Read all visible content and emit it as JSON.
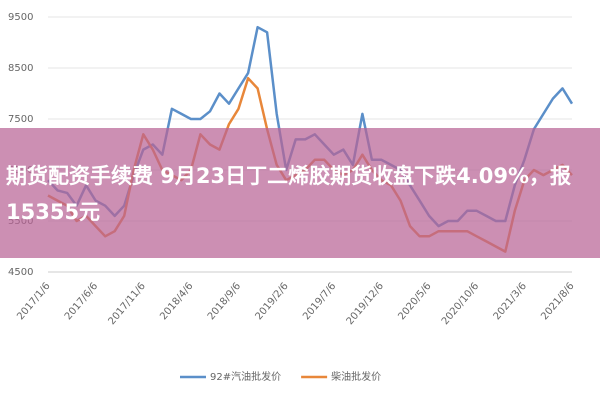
{
  "chart_data": {
    "type": "line",
    "categories": [
      "2017/1/6",
      null,
      null,
      null,
      null,
      "2017/6/6",
      null,
      null,
      null,
      null,
      "2017/11/6",
      null,
      null,
      null,
      null,
      "2018/4/6",
      null,
      null,
      null,
      null,
      "2018/9/6",
      null,
      null,
      null,
      null,
      "2019/2/6",
      null,
      null,
      null,
      null,
      "2019/7/6",
      null,
      null,
      null,
      null,
      "2019/12/6",
      null,
      null,
      null,
      null,
      "2020/5/6",
      null,
      null,
      null,
      null,
      "2020/10/6",
      null,
      null,
      null,
      null,
      "2021/3/6",
      null,
      null,
      null,
      null,
      "2021/8/6"
    ],
    "series": [
      {
        "name": "92#汽油批发价",
        "color": "#5b8fc9",
        "values": [
          6300,
          6100,
          6050,
          5800,
          6200,
          5900,
          5800,
          5600,
          5800,
          6400,
          6900,
          7000,
          6800,
          7700,
          7600,
          7500,
          7500,
          7650,
          8000,
          7800,
          8100,
          8400,
          9300,
          9200,
          7600,
          6500,
          7100,
          7100,
          7200,
          7000,
          6800,
          6900,
          6600,
          7600,
          6700,
          6700,
          6600,
          6500,
          6200,
          5900,
          5600,
          5400,
          5500,
          5500,
          5700,
          5700,
          5600,
          5500,
          5500,
          6200,
          6700,
          7300,
          7600,
          7900,
          8100,
          7800
        ]
      },
      {
        "name": "柴油批发价",
        "color": "#e8873a",
        "values": [
          6000,
          5900,
          5800,
          5500,
          5600,
          5400,
          5200,
          5300,
          5600,
          6500,
          7200,
          6900,
          6500,
          6400,
          6300,
          6500,
          7200,
          7000,
          6900,
          7400,
          7700,
          8300,
          8100,
          7300,
          6600,
          6300,
          6400,
          6500,
          6700,
          6700,
          6500,
          6400,
          6500,
          6800,
          6500,
          6300,
          6200,
          5900,
          5400,
          5200,
          5200,
          5300,
          5300,
          5300,
          5300,
          5200,
          5100,
          5000,
          4900,
          5700,
          6300,
          6500,
          6400,
          6500,
          6600,
          6400
        ]
      }
    ],
    "ylim": [
      4500,
      9500
    ],
    "yticks": [
      4500,
      5500,
      6500,
      7500,
      8500,
      9500
    ],
    "grid": true
  },
  "banner": {
    "text": "期货配资手续费 9月23日丁二烯胶期货收盘下跌4.09%，报15355元"
  }
}
